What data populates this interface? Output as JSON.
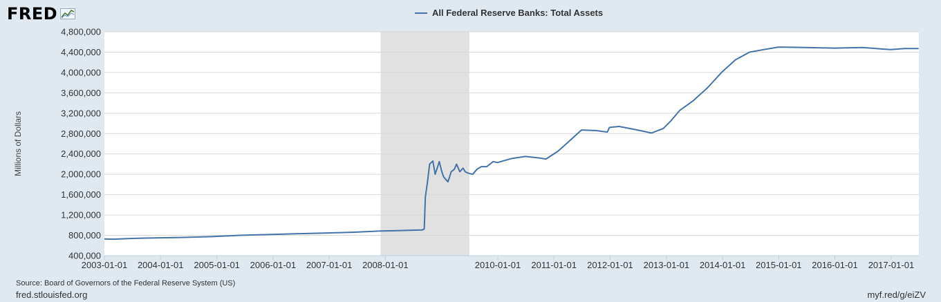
{
  "logo": {
    "text": "FRED",
    "icon": "chart-line-icon"
  },
  "footer": {
    "source": "Source: Board of Governors of the Federal Reserve System (US)",
    "site": "fred.stlouisfed.org",
    "short_url": "myf.red/g/eiZV"
  },
  "chart_data": {
    "type": "line",
    "title": "",
    "ylabel": "Millions of Dollars",
    "xlabel": "",
    "ylim": [
      400000,
      4800000
    ],
    "xlim": [
      "2003-01-01",
      "2017-06-30"
    ],
    "yticks": [
      400000,
      800000,
      1200000,
      1600000,
      2000000,
      2400000,
      2800000,
      3200000,
      3600000,
      4000000,
      4400000,
      4800000
    ],
    "ytick_labels": [
      "400,000",
      "800,000",
      "1,200,000",
      "1,600,000",
      "2,000,000",
      "2,400,000",
      "2,800,000",
      "3,200,000",
      "3,600,000",
      "4,000,000",
      "4,400,000",
      "4,800,000"
    ],
    "xticks": [
      "2003-01-01",
      "2004-01-01",
      "2005-01-01",
      "2006-01-01",
      "2007-01-01",
      "2008-01-01",
      "2010-01-01",
      "2011-01-01",
      "2012-01-01",
      "2013-01-01",
      "2014-01-01",
      "2015-01-01",
      "2016-01-01",
      "2017-01-01"
    ],
    "grid": true,
    "legend": "top-center",
    "colors": {
      "line": "#4572a7",
      "recession": "#e1e1e1",
      "grid": "#d8d8d8",
      "plot_bg": "#ffffff",
      "page_bg": "#e1e9f0"
    },
    "recession": {
      "start": "2007-12-01",
      "end": "2009-06-30"
    },
    "series": [
      {
        "name": "All Federal Reserve Banks: Total Assets",
        "x": [
          "2003-01-01",
          "2003-03-01",
          "2003-06-01",
          "2003-09-01",
          "2003-12-01",
          "2004-06-01",
          "2004-12-01",
          "2005-06-01",
          "2005-12-01",
          "2006-06-01",
          "2006-12-01",
          "2007-06-01",
          "2007-12-01",
          "2008-03-01",
          "2008-06-01",
          "2008-08-27",
          "2008-09-10",
          "2008-09-17",
          "2008-10-01",
          "2008-10-15",
          "2008-11-05",
          "2008-11-20",
          "2008-12-17",
          "2009-01-01",
          "2009-01-14",
          "2009-02-11",
          "2009-03-04",
          "2009-03-25",
          "2009-04-08",
          "2009-04-29",
          "2009-05-20",
          "2009-06-03",
          "2009-06-24",
          "2009-07-22",
          "2009-08-19",
          "2009-09-16",
          "2009-10-21",
          "2009-12-02",
          "2009-12-30",
          "2010-03-31",
          "2010-06-30",
          "2010-09-29",
          "2010-11-10",
          "2011-01-26",
          "2011-03-30",
          "2011-06-29",
          "2011-09-28",
          "2011-12-14",
          "2011-12-28",
          "2012-02-29",
          "2012-06-27",
          "2012-09-26",
          "2012-12-12",
          "2013-01-30",
          "2013-03-27",
          "2013-06-26",
          "2013-09-25",
          "2013-12-25",
          "2014-03-26",
          "2014-06-25",
          "2014-09-24",
          "2014-12-31",
          "2015-06-24",
          "2015-12-30",
          "2016-06-29",
          "2016-12-28",
          "2017-03-29",
          "2017-06-28"
        ],
        "values": [
          730000,
          725000,
          735000,
          745000,
          750000,
          760000,
          775000,
          800000,
          815000,
          830000,
          845000,
          860000,
          885000,
          890000,
          900000,
          905000,
          925000,
          1550000,
          1850000,
          2200000,
          2260000,
          2000000,
          2250000,
          2060000,
          1950000,
          1850000,
          2050000,
          2100000,
          2200000,
          2050000,
          2120000,
          2050000,
          2020000,
          2000000,
          2100000,
          2150000,
          2150000,
          2250000,
          2230000,
          2310000,
          2350000,
          2320000,
          2300000,
          2450000,
          2620000,
          2870000,
          2860000,
          2830000,
          2920000,
          2940000,
          2870000,
          2810000,
          2900000,
          3050000,
          3250000,
          3450000,
          3700000,
          4000000,
          4250000,
          4400000,
          4450000,
          4500000,
          4490000,
          4480000,
          4490000,
          4450000,
          4470000,
          4470000
        ]
      }
    ]
  }
}
